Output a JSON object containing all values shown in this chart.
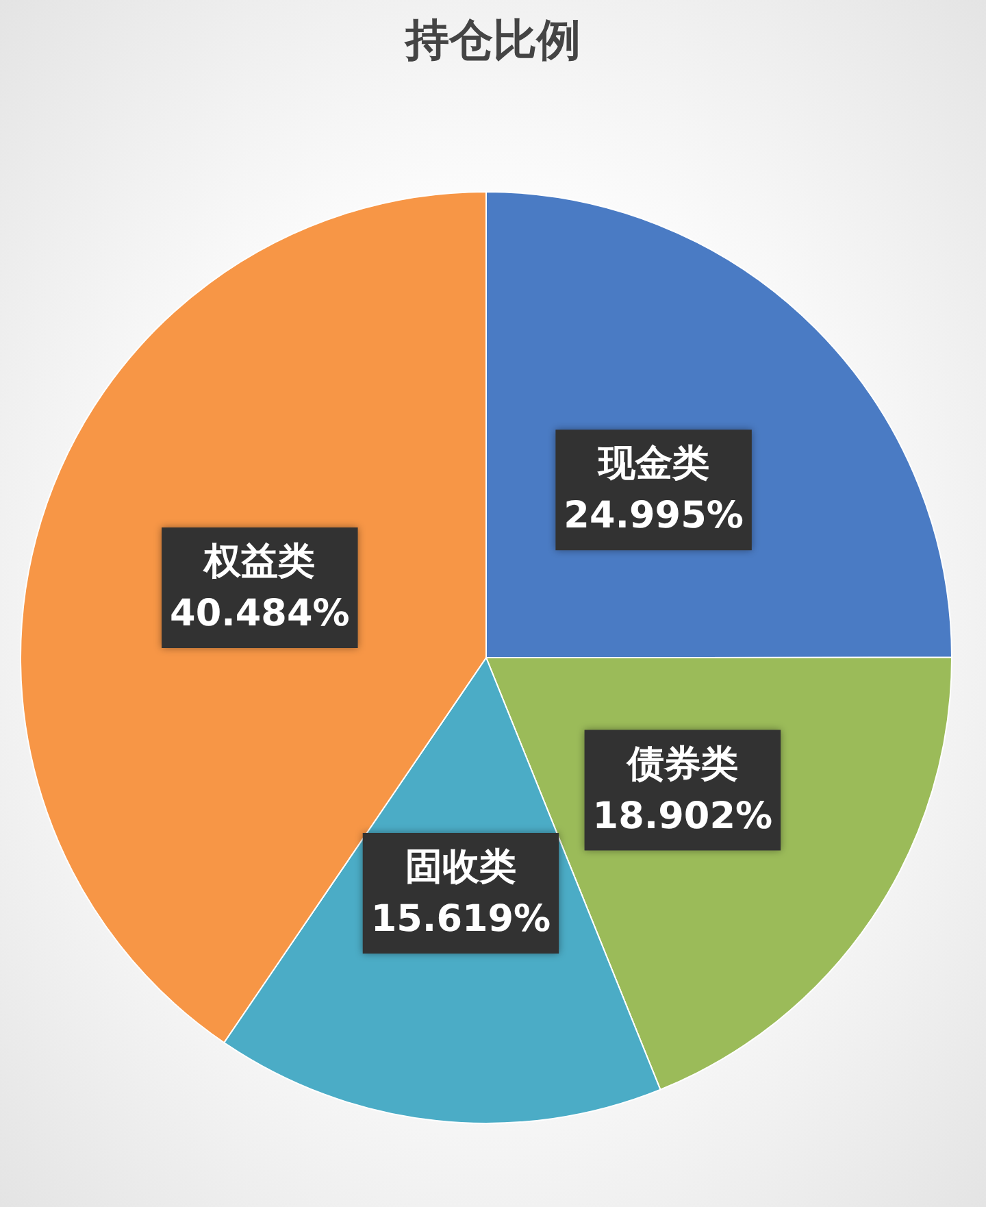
{
  "chart_data": {
    "type": "pie",
    "title": "持仓比例",
    "categories": [
      "现金类",
      "债券类",
      "固收类",
      "权益类"
    ],
    "values": [
      24.995,
      18.902,
      15.619,
      40.484
    ],
    "value_labels": [
      "24.995%",
      "18.902%",
      "15.619%",
      "40.484%"
    ],
    "colors": [
      "#4a7bc4",
      "#9bbb59",
      "#4bacc6",
      "#f79646"
    ],
    "legend": false
  }
}
